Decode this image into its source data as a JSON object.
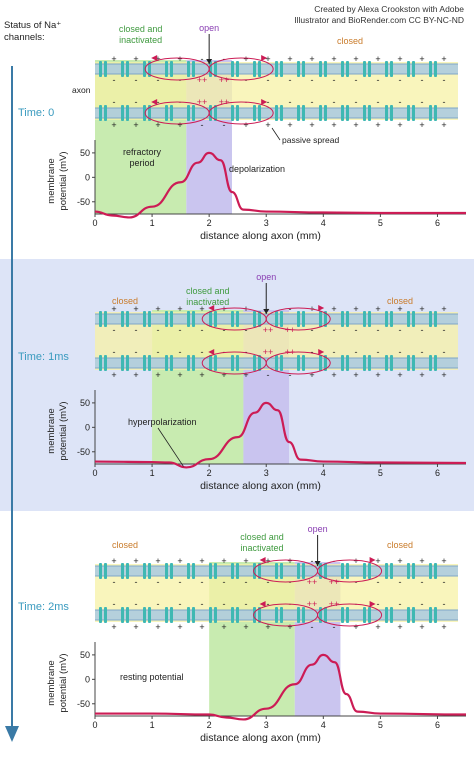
{
  "credit": {
    "line1": "Created by Alexa Crookston with Adobe",
    "line2": "Illustrator and BioRender.com CC BY-NC-ND"
  },
  "status_label": {
    "line1": "Status of Na⁺",
    "line2": "channels:"
  },
  "labels": {
    "closed": "closed",
    "closed_inactivated_1": "closed and",
    "closed_inactivated_2": "inactivated",
    "open": "open",
    "axon": "axon",
    "passive_spread": "passive spread",
    "ylabel_1": "membrane",
    "ylabel_2": "potential (mV)",
    "xlabel": "distance along axon (mm)",
    "charge_plus": "+",
    "charge_minus": "-",
    "charge_pp": "++",
    "charge_mm": "- -"
  },
  "colors": {
    "time_text": "#3a9bbf",
    "band_bg": "#dde4f7",
    "green_zone": "#c8ebb0",
    "purple_zone": "#c7c2ee",
    "closed_text": "#c97b2a",
    "open_text": "#8a3fb3",
    "inactivated_text": "#3f9a3f",
    "curve": "#cc1c55",
    "membrane_blue": "#a9c9e2",
    "cytoplasm_yellow": "#f7f1a6",
    "channel": "#3fb8b3",
    "arrow": "#3a7aa6"
  },
  "panels": [
    {
      "time_label": "Time: 0",
      "annotations": [
        "refractory",
        "period",
        "depolarization"
      ],
      "chart_data": {
        "type": "line",
        "xlabel": "distance along axon (mm)",
        "ylabel": "membrane potential (mV)",
        "xlim": [
          0,
          6.5
        ],
        "ylim": [
          -75,
          60
        ],
        "xticks": [
          0,
          1,
          2,
          3,
          4,
          5,
          6
        ],
        "yticks": [
          50,
          0,
          -50
        ],
        "green_zone": [
          0,
          1.6
        ],
        "purple_zone": [
          1.6,
          2.4
        ],
        "x": [
          0,
          0.3,
          0.6,
          1.0,
          1.5,
          1.8,
          2.0,
          2.2,
          2.4,
          2.6,
          3.0,
          4.0,
          5.0,
          6.5
        ],
        "y": [
          -70,
          -78,
          -82,
          -60,
          -10,
          30,
          50,
          35,
          -30,
          -66,
          -70,
          -72,
          -73,
          -73
        ]
      }
    },
    {
      "time_label": "Time: 1ms",
      "annotations": [
        "hyperpolarization"
      ],
      "chart_data": {
        "type": "line",
        "xlabel": "distance along axon (mm)",
        "ylabel": "membrane potential (mV)",
        "xlim": [
          0,
          6.5
        ],
        "ylim": [
          -75,
          60
        ],
        "xticks": [
          0,
          1,
          2,
          3,
          4,
          5,
          6
        ],
        "yticks": [
          50,
          0,
          -50
        ],
        "green_zone": [
          1.0,
          2.6
        ],
        "purple_zone": [
          2.6,
          3.4
        ],
        "x": [
          0,
          1.0,
          1.3,
          1.6,
          2.0,
          2.5,
          2.8,
          3.0,
          3.2,
          3.4,
          3.6,
          4.0,
          5.0,
          6.5
        ],
        "y": [
          -70,
          -71,
          -72,
          -82,
          -65,
          -20,
          30,
          50,
          35,
          -30,
          -66,
          -70,
          -72,
          -73
        ]
      }
    },
    {
      "time_label": "Time: 2ms",
      "annotations": [
        "resting potential"
      ],
      "chart_data": {
        "type": "line",
        "xlabel": "distance along axon (mm)",
        "ylabel": "membrane potential (mV)",
        "xlim": [
          0,
          6.5
        ],
        "ylim": [
          -75,
          60
        ],
        "xticks": [
          0,
          1,
          2,
          3,
          4,
          5,
          6
        ],
        "yticks": [
          50,
          0,
          -50
        ],
        "green_zone": [
          2.0,
          3.5
        ],
        "purple_zone": [
          3.5,
          4.3
        ],
        "x": [
          0,
          1.0,
          2.0,
          2.3,
          2.6,
          3.0,
          3.5,
          3.8,
          4.0,
          4.2,
          4.4,
          4.6,
          5.0,
          6.5
        ],
        "y": [
          -70,
          -70,
          -72,
          -78,
          -82,
          -60,
          -10,
          30,
          50,
          35,
          -30,
          -66,
          -70,
          -72
        ]
      }
    }
  ]
}
